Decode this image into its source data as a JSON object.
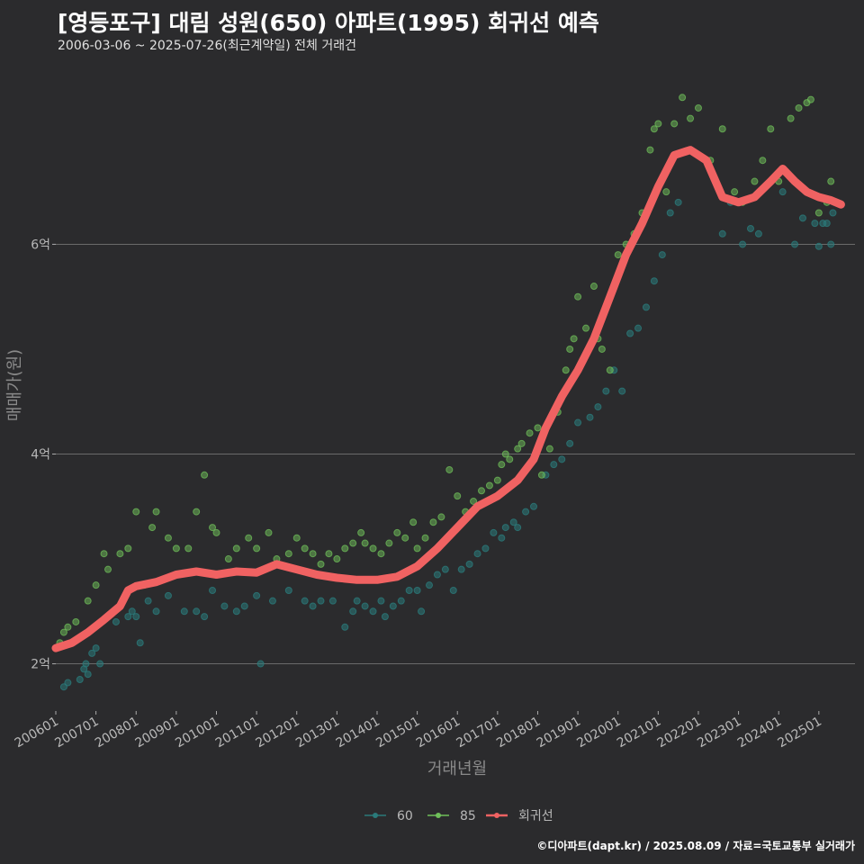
{
  "header": {
    "title": "[영등포구] 대림 성원(650) 아파트(1995) 회귀선 예측",
    "subtitle": "2006-03-06 ~ 2025-07-26(최근계약일) 전체 거래건"
  },
  "footer": {
    "credit": "©디아파트(dapt.kr) / 2025.08.09 / 자료=국토교통부 실거래가"
  },
  "colors": {
    "background": "#2b2b2d",
    "s60": "#2a7a7a",
    "s85": "#6fbf5a",
    "regression": "#f06262",
    "grid": "#6a6a6a"
  },
  "chart_data": {
    "type": "scatter",
    "title": "[영등포구] 대림 성원(650) 아파트(1995) 회귀선 예측",
    "xlabel": "거래년월",
    "ylabel": "매매가(원)",
    "xlim": [
      2006.0,
      2025.9
    ],
    "ylim": [
      1.55,
      7.6
    ],
    "x_ticks": [
      {
        "label": "200601",
        "x": 2006.0
      },
      {
        "label": "200701",
        "x": 2007.0
      },
      {
        "label": "200801",
        "x": 2008.0
      },
      {
        "label": "200901",
        "x": 2009.0
      },
      {
        "label": "201001",
        "x": 2010.0
      },
      {
        "label": "201101",
        "x": 2011.0
      },
      {
        "label": "201201",
        "x": 2012.0
      },
      {
        "label": "201301",
        "x": 2013.0
      },
      {
        "label": "201401",
        "x": 2014.0
      },
      {
        "label": "201501",
        "x": 2015.0
      },
      {
        "label": "201601",
        "x": 2016.0
      },
      {
        "label": "201701",
        "x": 2017.0
      },
      {
        "label": "201801",
        "x": 2018.0
      },
      {
        "label": "201901",
        "x": 2019.0
      },
      {
        "label": "202001",
        "x": 2020.0
      },
      {
        "label": "202101",
        "x": 2021.0
      },
      {
        "label": "202201",
        "x": 2022.0
      },
      {
        "label": "202301",
        "x": 2023.0
      },
      {
        "label": "202401",
        "x": 2024.0
      },
      {
        "label": "202501",
        "x": 2025.0
      }
    ],
    "y_ticks": [
      {
        "label": "2억",
        "y": 2
      },
      {
        "label": "4억",
        "y": 4
      },
      {
        "label": "6억",
        "y": 6
      }
    ],
    "legend": [
      {
        "name": "60",
        "key": "s60"
      },
      {
        "name": "85",
        "key": "s85"
      },
      {
        "name": "회귀선",
        "key": "regression"
      }
    ],
    "series": [
      {
        "name": "60",
        "points": [
          [
            2006.2,
            1.78
          ],
          [
            2006.3,
            1.82
          ],
          [
            2006.6,
            1.85
          ],
          [
            2006.7,
            1.95
          ],
          [
            2006.75,
            2.0
          ],
          [
            2006.8,
            1.9
          ],
          [
            2006.9,
            2.1
          ],
          [
            2007.0,
            2.15
          ],
          [
            2007.1,
            2.0
          ],
          [
            2007.5,
            2.4
          ],
          [
            2007.8,
            2.45
          ],
          [
            2007.9,
            2.5
          ],
          [
            2008.0,
            2.45
          ],
          [
            2008.1,
            2.2
          ],
          [
            2008.3,
            2.6
          ],
          [
            2008.5,
            2.5
          ],
          [
            2008.8,
            2.65
          ],
          [
            2009.2,
            2.5
          ],
          [
            2009.5,
            2.5
          ],
          [
            2009.7,
            2.45
          ],
          [
            2009.9,
            2.7
          ],
          [
            2010.2,
            2.55
          ],
          [
            2010.5,
            2.5
          ],
          [
            2010.7,
            2.55
          ],
          [
            2011.0,
            2.65
          ],
          [
            2011.1,
            2.0
          ],
          [
            2011.4,
            2.6
          ],
          [
            2011.8,
            2.7
          ],
          [
            2012.2,
            2.6
          ],
          [
            2012.4,
            2.55
          ],
          [
            2012.6,
            2.6
          ],
          [
            2012.9,
            2.6
          ],
          [
            2013.2,
            2.35
          ],
          [
            2013.4,
            2.5
          ],
          [
            2013.5,
            2.6
          ],
          [
            2013.7,
            2.55
          ],
          [
            2013.9,
            2.5
          ],
          [
            2014.1,
            2.6
          ],
          [
            2014.2,
            2.45
          ],
          [
            2014.4,
            2.55
          ],
          [
            2014.6,
            2.6
          ],
          [
            2014.8,
            2.7
          ],
          [
            2015.0,
            2.7
          ],
          [
            2015.1,
            2.5
          ],
          [
            2015.3,
            2.75
          ],
          [
            2015.5,
            2.85
          ],
          [
            2015.7,
            2.9
          ],
          [
            2015.9,
            2.7
          ],
          [
            2016.1,
            2.9
          ],
          [
            2016.3,
            2.95
          ],
          [
            2016.5,
            3.05
          ],
          [
            2016.7,
            3.1
          ],
          [
            2016.9,
            3.25
          ],
          [
            2017.1,
            3.2
          ],
          [
            2017.2,
            3.3
          ],
          [
            2017.4,
            3.35
          ],
          [
            2017.5,
            3.3
          ],
          [
            2017.7,
            3.45
          ],
          [
            2017.9,
            3.5
          ],
          [
            2018.2,
            3.8
          ],
          [
            2018.4,
            3.9
          ],
          [
            2018.6,
            3.95
          ],
          [
            2018.8,
            4.1
          ],
          [
            2019.0,
            4.3
          ],
          [
            2019.3,
            4.35
          ],
          [
            2019.5,
            4.45
          ],
          [
            2019.7,
            4.6
          ],
          [
            2019.9,
            4.8
          ],
          [
            2020.1,
            4.6
          ],
          [
            2020.3,
            5.15
          ],
          [
            2020.5,
            5.2
          ],
          [
            2020.7,
            5.4
          ],
          [
            2020.9,
            5.65
          ],
          [
            2021.1,
            5.9
          ],
          [
            2021.3,
            6.3
          ],
          [
            2021.5,
            6.4
          ],
          [
            2022.6,
            6.1
          ],
          [
            2022.8,
            6.4
          ],
          [
            2023.1,
            6.0
          ],
          [
            2023.3,
            6.15
          ],
          [
            2023.5,
            6.1
          ],
          [
            2024.1,
            6.5
          ],
          [
            2024.4,
            6.0
          ],
          [
            2024.6,
            6.25
          ],
          [
            2024.9,
            6.2
          ],
          [
            2025.0,
            5.98
          ],
          [
            2025.1,
            6.2
          ],
          [
            2025.2,
            6.2
          ],
          [
            2025.3,
            6.0
          ],
          [
            2025.35,
            6.3
          ]
        ]
      },
      {
        "name": "85",
        "points": [
          [
            2006.1,
            2.2
          ],
          [
            2006.2,
            2.3
          ],
          [
            2006.3,
            2.35
          ],
          [
            2006.5,
            2.4
          ],
          [
            2006.8,
            2.6
          ],
          [
            2007.0,
            2.75
          ],
          [
            2007.2,
            3.05
          ],
          [
            2007.3,
            2.9
          ],
          [
            2007.6,
            3.05
          ],
          [
            2007.8,
            3.1
          ],
          [
            2008.0,
            3.45
          ],
          [
            2008.2,
            2.75
          ],
          [
            2008.4,
            3.3
          ],
          [
            2008.5,
            3.45
          ],
          [
            2008.8,
            3.2
          ],
          [
            2009.0,
            3.1
          ],
          [
            2009.3,
            3.1
          ],
          [
            2009.5,
            3.45
          ],
          [
            2009.7,
            3.8
          ],
          [
            2009.9,
            3.3
          ],
          [
            2010.0,
            3.25
          ],
          [
            2010.3,
            3.0
          ],
          [
            2010.5,
            3.1
          ],
          [
            2010.8,
            3.2
          ],
          [
            2011.0,
            3.1
          ],
          [
            2011.3,
            3.25
          ],
          [
            2011.5,
            3.0
          ],
          [
            2011.8,
            3.05
          ],
          [
            2012.0,
            3.2
          ],
          [
            2012.2,
            3.1
          ],
          [
            2012.4,
            3.05
          ],
          [
            2012.6,
            2.95
          ],
          [
            2012.8,
            3.05
          ],
          [
            2013.0,
            3.0
          ],
          [
            2013.2,
            3.1
          ],
          [
            2013.4,
            3.15
          ],
          [
            2013.6,
            3.25
          ],
          [
            2013.7,
            3.15
          ],
          [
            2013.9,
            3.1
          ],
          [
            2014.1,
            3.05
          ],
          [
            2014.3,
            3.15
          ],
          [
            2014.5,
            3.25
          ],
          [
            2014.7,
            3.2
          ],
          [
            2014.9,
            3.35
          ],
          [
            2015.0,
            3.1
          ],
          [
            2015.2,
            3.2
          ],
          [
            2015.4,
            3.35
          ],
          [
            2015.6,
            3.4
          ],
          [
            2015.8,
            3.85
          ],
          [
            2016.0,
            3.6
          ],
          [
            2016.2,
            3.45
          ],
          [
            2016.4,
            3.55
          ],
          [
            2016.6,
            3.65
          ],
          [
            2016.8,
            3.7
          ],
          [
            2017.0,
            3.75
          ],
          [
            2017.1,
            3.9
          ],
          [
            2017.2,
            4.0
          ],
          [
            2017.3,
            3.95
          ],
          [
            2017.5,
            4.05
          ],
          [
            2017.6,
            4.1
          ],
          [
            2017.8,
            4.2
          ],
          [
            2018.0,
            4.25
          ],
          [
            2018.1,
            3.8
          ],
          [
            2018.3,
            4.05
          ],
          [
            2018.5,
            4.4
          ],
          [
            2018.7,
            4.8
          ],
          [
            2018.8,
            5.0
          ],
          [
            2018.9,
            5.1
          ],
          [
            2019.0,
            5.5
          ],
          [
            2019.2,
            5.2
          ],
          [
            2019.4,
            5.6
          ],
          [
            2019.5,
            5.1
          ],
          [
            2019.6,
            5.0
          ],
          [
            2019.8,
            4.8
          ],
          [
            2020.0,
            5.9
          ],
          [
            2020.2,
            6.0
          ],
          [
            2020.4,
            6.1
          ],
          [
            2020.6,
            6.3
          ],
          [
            2020.8,
            6.9
          ],
          [
            2020.9,
            7.1
          ],
          [
            2021.0,
            7.15
          ],
          [
            2021.2,
            6.5
          ],
          [
            2021.4,
            7.15
          ],
          [
            2021.6,
            7.4
          ],
          [
            2021.8,
            7.2
          ],
          [
            2022.0,
            7.3
          ],
          [
            2022.3,
            6.8
          ],
          [
            2022.6,
            7.1
          ],
          [
            2022.9,
            6.5
          ],
          [
            2023.1,
            6.4
          ],
          [
            2023.4,
            6.6
          ],
          [
            2023.6,
            6.8
          ],
          [
            2023.8,
            7.1
          ],
          [
            2024.0,
            6.6
          ],
          [
            2024.3,
            7.2
          ],
          [
            2024.5,
            7.3
          ],
          [
            2024.7,
            7.35
          ],
          [
            2024.8,
            7.38
          ],
          [
            2025.0,
            6.3
          ],
          [
            2025.2,
            6.4
          ],
          [
            2025.3,
            6.6
          ]
        ]
      },
      {
        "name": "회귀선",
        "points": [
          [
            2006.0,
            2.15
          ],
          [
            2006.4,
            2.2
          ],
          [
            2006.8,
            2.3
          ],
          [
            2007.2,
            2.42
          ],
          [
            2007.6,
            2.55
          ],
          [
            2007.8,
            2.7
          ],
          [
            2008.0,
            2.74
          ],
          [
            2008.5,
            2.78
          ],
          [
            2009.0,
            2.85
          ],
          [
            2009.5,
            2.88
          ],
          [
            2010.0,
            2.85
          ],
          [
            2010.5,
            2.88
          ],
          [
            2011.0,
            2.87
          ],
          [
            2011.5,
            2.95
          ],
          [
            2012.0,
            2.9
          ],
          [
            2012.5,
            2.85
          ],
          [
            2013.0,
            2.82
          ],
          [
            2013.5,
            2.8
          ],
          [
            2014.0,
            2.8
          ],
          [
            2014.5,
            2.83
          ],
          [
            2015.0,
            2.93
          ],
          [
            2015.5,
            3.1
          ],
          [
            2016.0,
            3.3
          ],
          [
            2016.5,
            3.5
          ],
          [
            2017.0,
            3.6
          ],
          [
            2017.5,
            3.75
          ],
          [
            2017.9,
            3.95
          ],
          [
            2018.2,
            4.25
          ],
          [
            2018.6,
            4.55
          ],
          [
            2019.0,
            4.8
          ],
          [
            2019.4,
            5.1
          ],
          [
            2019.8,
            5.5
          ],
          [
            2020.2,
            5.9
          ],
          [
            2020.6,
            6.2
          ],
          [
            2021.0,
            6.55
          ],
          [
            2021.4,
            6.85
          ],
          [
            2021.8,
            6.9
          ],
          [
            2022.2,
            6.8
          ],
          [
            2022.6,
            6.45
          ],
          [
            2023.0,
            6.4
          ],
          [
            2023.4,
            6.45
          ],
          [
            2023.8,
            6.6
          ],
          [
            2024.1,
            6.72
          ],
          [
            2024.4,
            6.6
          ],
          [
            2024.7,
            6.5
          ],
          [
            2025.0,
            6.45
          ],
          [
            2025.3,
            6.42
          ],
          [
            2025.55,
            6.38
          ]
        ]
      }
    ]
  }
}
